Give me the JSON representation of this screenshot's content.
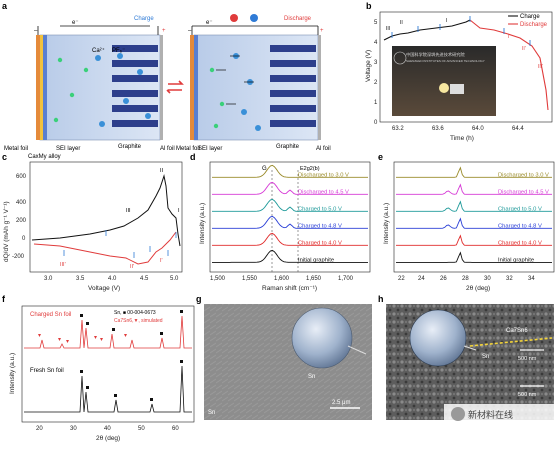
{
  "panels": {
    "a": {
      "label": "a",
      "charge": "Charge",
      "discharge": "Discharge",
      "electron": "e⁻",
      "minus": "–",
      "plus": "+",
      "ions": [
        "Ca²⁺",
        "PF₆⁻"
      ],
      "left_labels": [
        "Metal foil",
        "CaxMy alloy",
        "SEI layer"
      ],
      "left_labels_right": [
        "Metal foil",
        "SEI layer"
      ],
      "graphite": "Graphite",
      "al_foil": "Al foil",
      "colors": {
        "blue": "#2f7bd6",
        "red": "#e03b3b",
        "graphite": "#2d3f8c",
        "electrolyte": "#c9d8ee"
      }
    },
    "b": {
      "label": "b",
      "ylabel": "Voltage (V)",
      "xlabel": "Time (h)",
      "legend": [
        "Charge",
        "Discharge"
      ],
      "stage_labels": [
        "III",
        "II",
        "I",
        "I'",
        "II'",
        "III'"
      ],
      "xticks": [
        "63.2",
        "63.6",
        "64.0",
        "64.4"
      ],
      "yticks": [
        "0",
        "1",
        "2",
        "3",
        "4",
        "5"
      ],
      "photo_text": [
        "中国科学院深圳先进技术研究院",
        "SHENZHEN INSTITUTES OF ADVANCED TECHNOLOGY"
      ]
    },
    "c": {
      "label": "c",
      "ylabel": "dQ/dV (mAh g⁻¹ V⁻¹)",
      "xlabel": "Voltage (V)",
      "xticks": [
        "3.0",
        "3.5",
        "4.0",
        "4.5",
        "5.0"
      ],
      "yticks": [
        "-200",
        "0",
        "200",
        "400",
        "600"
      ],
      "peaks": [
        "III",
        "II",
        "I",
        "III'",
        "II'",
        "I'"
      ]
    },
    "d": {
      "label": "d",
      "ylabel": "Intensity (a.u.)",
      "xlabel": "Raman shift (cm⁻¹)",
      "band_labels": [
        "G",
        "E2g2(b)"
      ],
      "xticks": [
        "1,500",
        "1,550",
        "1,600",
        "1,650",
        "1,700"
      ],
      "traces": [
        {
          "name": "Discharged to 3.0 V",
          "color": "#9a8b2a"
        },
        {
          "name": "Discharged to 4.5 V",
          "color": "#d63ad6"
        },
        {
          "name": "Charged to 5.0 V",
          "color": "#1f9a9a"
        },
        {
          "name": "Charged to 4.8 V",
          "color": "#2a3fd6"
        },
        {
          "name": "Charged to 4.0 V",
          "color": "#e02a2a"
        },
        {
          "name": "Initial graphite",
          "color": "#111111"
        }
      ]
    },
    "e": {
      "label": "e",
      "ylabel": "Intensity (a.u.)",
      "xlabel": "2θ (deg)",
      "xticks": [
        "22",
        "24",
        "26",
        "28",
        "30",
        "32",
        "34"
      ],
      "traces": [
        {
          "name": "Discharged to 3.0 V",
          "color": "#9a8b2a"
        },
        {
          "name": "Discharged to 4.5 V",
          "color": "#d63ad6"
        },
        {
          "name": "Charged to 5.0 V",
          "color": "#1f9a9a"
        },
        {
          "name": "Charged to 4.8 V",
          "color": "#2a3fd6"
        },
        {
          "name": "Charged to 4.0 V",
          "color": "#e02a2a"
        },
        {
          "name": "Initial graphite",
          "color": "#111111"
        }
      ]
    },
    "f": {
      "label": "f",
      "ylabel": "Intensity (a.u.)",
      "xlabel": "2θ (deg)",
      "xticks": [
        "20",
        "30",
        "40",
        "50",
        "60"
      ],
      "charged": "Charged Sn foil",
      "fresh": "Fresh Sn foil",
      "ref1": "Sn, ■ 00-004-0673",
      "ref2": "Ca7Sn6,▼, simulated"
    },
    "g": {
      "label": "g",
      "inset": "Sn",
      "corner": "Sn",
      "scale": "2.5 μm"
    },
    "h": {
      "label": "h",
      "phase_top": "Ca7Sn6",
      "phase_bottom": "Sn",
      "scale1": "500 nm",
      "scale2": "500 nm",
      "watermark": "新材料在线"
    }
  }
}
